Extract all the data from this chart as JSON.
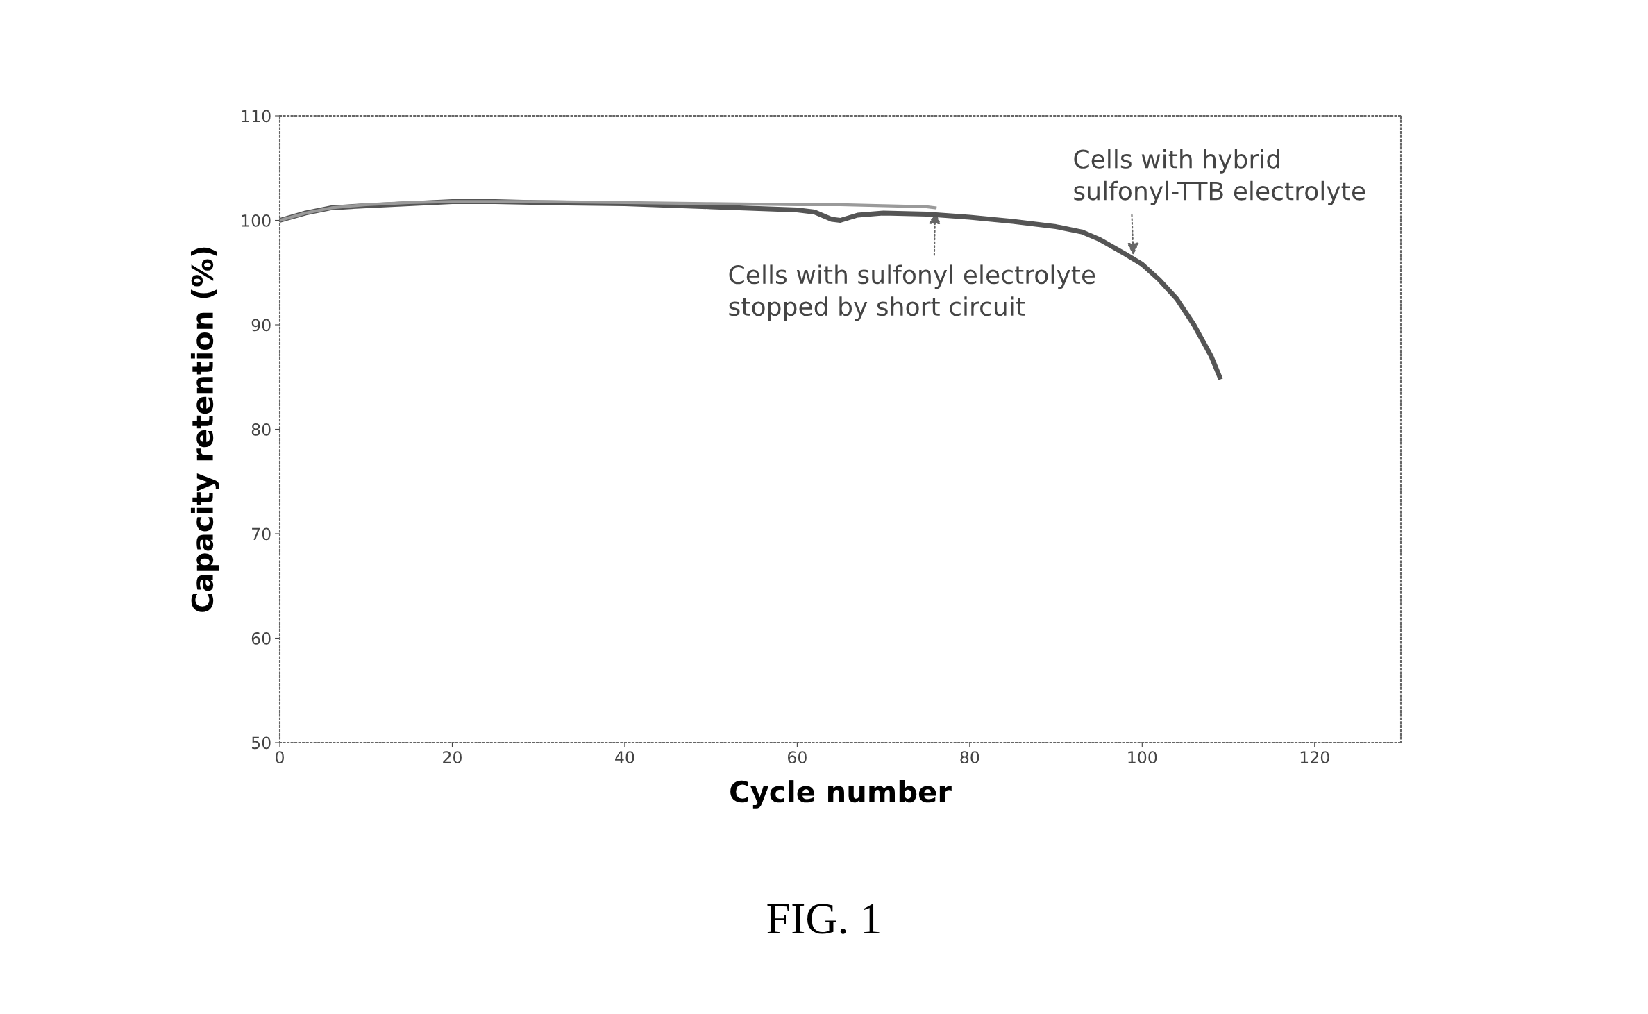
{
  "chart_data": {
    "type": "line",
    "xlabel": "Cycle number",
    "ylabel": "Capacity retention (%)",
    "xlim": [
      0,
      130
    ],
    "ylim": [
      50,
      110
    ],
    "xticks": [
      0,
      20,
      40,
      60,
      80,
      100,
      120
    ],
    "yticks": [
      50,
      60,
      70,
      80,
      90,
      100,
      110
    ],
    "grid": false,
    "legend": false,
    "line_style": "solid",
    "marker": "none",
    "series": [
      {
        "color": "#9a9a9a",
        "x": [
          0,
          3,
          6,
          10,
          15,
          20,
          25,
          30,
          40,
          50,
          60,
          65,
          70,
          75,
          76
        ],
        "values": [
          100,
          100.7,
          101.2,
          101.5,
          101.7,
          101.8,
          101.8,
          101.8,
          101.7,
          101.6,
          101.5,
          101.5,
          101.4,
          101.3,
          101.2
        ]
      },
      {
        "color": "#555555",
        "x": [
          0,
          3,
          6,
          10,
          15,
          20,
          25,
          30,
          40,
          50,
          60,
          62,
          64,
          65,
          67,
          70,
          75,
          80,
          85,
          90,
          93,
          95,
          98,
          100,
          102,
          104,
          106,
          108,
          109
        ],
        "values": [
          100,
          100.7,
          101.2,
          101.4,
          101.6,
          101.8,
          101.8,
          101.7,
          101.6,
          101.3,
          101.0,
          100.8,
          100.1,
          100.0,
          100.5,
          100.7,
          100.6,
          100.3,
          99.9,
          99.4,
          98.9,
          98.2,
          96.8,
          95.8,
          94.3,
          92.5,
          90.0,
          87.0,
          85.0
        ]
      }
    ],
    "annotations": [
      {
        "text": "Cells with sulfonyl electrolyte\nstopped by short circuit",
        "x": 76,
        "y": 101.2
      },
      {
        "text": "Cells with hybrid\nsulfonyl-TTB electrolyte",
        "x": 99,
        "y": 96.3
      },
      "FIG. 1"
    ]
  }
}
